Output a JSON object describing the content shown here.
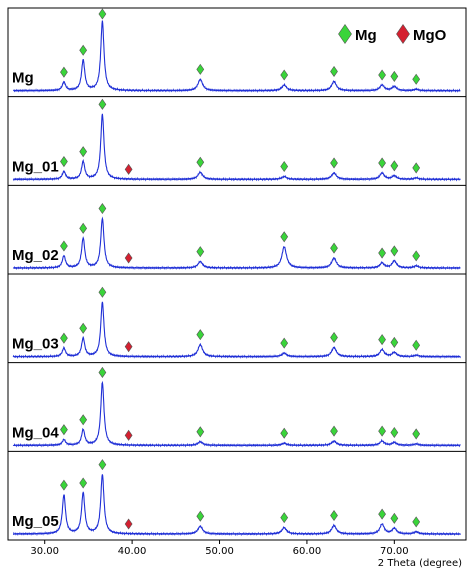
{
  "chart_data": {
    "type": "line",
    "xlabel": "2 Theta (degree)",
    "ylabel": "",
    "xlim": [
      25.8,
      78.2
    ],
    "x_ticks": [
      30,
      40,
      50,
      60,
      70
    ],
    "x_tick_labels": [
      "30.00",
      "40.00",
      "50.00",
      "60.00",
      "70.00"
    ],
    "grid": false,
    "line_color": "#1f2fd6",
    "legend_position": "top-right",
    "legend": [
      {
        "name": "Mg",
        "marker": "diamond",
        "color": "#3ad43a"
      },
      {
        "name": "MgO",
        "marker": "diamond",
        "color": "#d42030"
      }
    ],
    "series": [
      {
        "name": "Mg",
        "peaks": [
          {
            "x": 32.2,
            "h": 0.12,
            "w": 0.22,
            "phase": "Mg"
          },
          {
            "x": 34.4,
            "h": 0.43,
            "w": 0.22,
            "phase": "Mg"
          },
          {
            "x": 36.6,
            "h": 0.98,
            "w": 0.22,
            "phase": "Mg"
          },
          {
            "x": 47.8,
            "h": 0.16,
            "w": 0.32,
            "phase": "Mg"
          },
          {
            "x": 57.4,
            "h": 0.08,
            "w": 0.32,
            "phase": "Mg"
          },
          {
            "x": 63.1,
            "h": 0.13,
            "w": 0.32,
            "phase": "Mg"
          },
          {
            "x": 68.6,
            "h": 0.08,
            "w": 0.3,
            "phase": "Mg"
          },
          {
            "x": 70.0,
            "h": 0.06,
            "w": 0.3,
            "phase": "Mg"
          },
          {
            "x": 72.5,
            "h": 0.02,
            "w": 0.3,
            "phase": "Mg"
          }
        ]
      },
      {
        "name": "Mg_01",
        "peaks": [
          {
            "x": 32.2,
            "h": 0.11,
            "w": 0.22,
            "phase": "Mg"
          },
          {
            "x": 34.4,
            "h": 0.25,
            "w": 0.22,
            "phase": "Mg"
          },
          {
            "x": 36.6,
            "h": 0.92,
            "w": 0.22,
            "phase": "Mg"
          },
          {
            "x": 39.6,
            "h": 0.0,
            "w": 0.3,
            "phase": "MgO"
          },
          {
            "x": 47.8,
            "h": 0.1,
            "w": 0.32,
            "phase": "Mg"
          },
          {
            "x": 57.4,
            "h": 0.04,
            "w": 0.32,
            "phase": "Mg"
          },
          {
            "x": 63.1,
            "h": 0.09,
            "w": 0.32,
            "phase": "Mg"
          },
          {
            "x": 68.6,
            "h": 0.09,
            "w": 0.3,
            "phase": "Mg"
          },
          {
            "x": 70.0,
            "h": 0.05,
            "w": 0.3,
            "phase": "Mg"
          },
          {
            "x": 72.5,
            "h": 0.02,
            "w": 0.3,
            "phase": "Mg"
          }
        ]
      },
      {
        "name": "Mg_02",
        "peaks": [
          {
            "x": 32.2,
            "h": 0.17,
            "w": 0.22,
            "phase": "Mg"
          },
          {
            "x": 34.4,
            "h": 0.42,
            "w": 0.22,
            "phase": "Mg"
          },
          {
            "x": 36.6,
            "h": 0.7,
            "w": 0.22,
            "phase": "Mg"
          },
          {
            "x": 39.6,
            "h": 0.0,
            "w": 0.3,
            "phase": "MgO"
          },
          {
            "x": 47.8,
            "h": 0.09,
            "w": 0.32,
            "phase": "Mg"
          },
          {
            "x": 57.4,
            "h": 0.3,
            "w": 0.32,
            "phase": "Mg"
          },
          {
            "x": 63.1,
            "h": 0.14,
            "w": 0.32,
            "phase": "Mg"
          },
          {
            "x": 68.6,
            "h": 0.07,
            "w": 0.3,
            "phase": "Mg"
          },
          {
            "x": 70.0,
            "h": 0.1,
            "w": 0.3,
            "phase": "Mg"
          },
          {
            "x": 72.5,
            "h": 0.03,
            "w": 0.3,
            "phase": "Mg"
          }
        ]
      },
      {
        "name": "Mg_03",
        "peaks": [
          {
            "x": 32.2,
            "h": 0.12,
            "w": 0.22,
            "phase": "Mg"
          },
          {
            "x": 34.4,
            "h": 0.26,
            "w": 0.22,
            "phase": "Mg"
          },
          {
            "x": 36.6,
            "h": 0.77,
            "w": 0.22,
            "phase": "Mg"
          },
          {
            "x": 39.6,
            "h": 0.0,
            "w": 0.3,
            "phase": "MgO"
          },
          {
            "x": 47.8,
            "h": 0.17,
            "w": 0.32,
            "phase": "Mg"
          },
          {
            "x": 57.4,
            "h": 0.05,
            "w": 0.32,
            "phase": "Mg"
          },
          {
            "x": 63.1,
            "h": 0.13,
            "w": 0.32,
            "phase": "Mg"
          },
          {
            "x": 68.6,
            "h": 0.1,
            "w": 0.3,
            "phase": "Mg"
          },
          {
            "x": 70.0,
            "h": 0.06,
            "w": 0.3,
            "phase": "Mg"
          },
          {
            "x": 72.5,
            "h": 0.02,
            "w": 0.3,
            "phase": "Mg"
          }
        ]
      },
      {
        "name": "Mg_04",
        "peaks": [
          {
            "x": 32.2,
            "h": 0.08,
            "w": 0.22,
            "phase": "Mg"
          },
          {
            "x": 34.4,
            "h": 0.22,
            "w": 0.22,
            "phase": "Mg"
          },
          {
            "x": 36.6,
            "h": 0.89,
            "w": 0.22,
            "phase": "Mg"
          },
          {
            "x": 39.6,
            "h": 0.0,
            "w": 0.3,
            "phase": "MgO"
          },
          {
            "x": 47.8,
            "h": 0.05,
            "w": 0.32,
            "phase": "Mg"
          },
          {
            "x": 57.4,
            "h": 0.03,
            "w": 0.32,
            "phase": "Mg"
          },
          {
            "x": 63.1,
            "h": 0.06,
            "w": 0.32,
            "phase": "Mg"
          },
          {
            "x": 68.6,
            "h": 0.06,
            "w": 0.3,
            "phase": "Mg"
          },
          {
            "x": 70.0,
            "h": 0.04,
            "w": 0.3,
            "phase": "Mg"
          },
          {
            "x": 72.5,
            "h": 0.02,
            "w": 0.3,
            "phase": "Mg"
          }
        ]
      },
      {
        "name": "Mg_05",
        "peaks": [
          {
            "x": 32.2,
            "h": 0.55,
            "w": 0.22,
            "phase": "Mg"
          },
          {
            "x": 34.4,
            "h": 0.58,
            "w": 0.22,
            "phase": "Mg"
          },
          {
            "x": 36.6,
            "h": 0.84,
            "w": 0.22,
            "phase": "Mg"
          },
          {
            "x": 39.6,
            "h": 0.0,
            "w": 0.3,
            "phase": "MgO"
          },
          {
            "x": 47.8,
            "h": 0.11,
            "w": 0.32,
            "phase": "Mg"
          },
          {
            "x": 57.4,
            "h": 0.09,
            "w": 0.32,
            "phase": "Mg"
          },
          {
            "x": 63.1,
            "h": 0.12,
            "w": 0.32,
            "phase": "Mg"
          },
          {
            "x": 68.6,
            "h": 0.14,
            "w": 0.3,
            "phase": "Mg"
          },
          {
            "x": 70.0,
            "h": 0.08,
            "w": 0.3,
            "phase": "Mg"
          },
          {
            "x": 72.5,
            "h": 0.03,
            "w": 0.3,
            "phase": "Mg"
          }
        ]
      }
    ]
  }
}
